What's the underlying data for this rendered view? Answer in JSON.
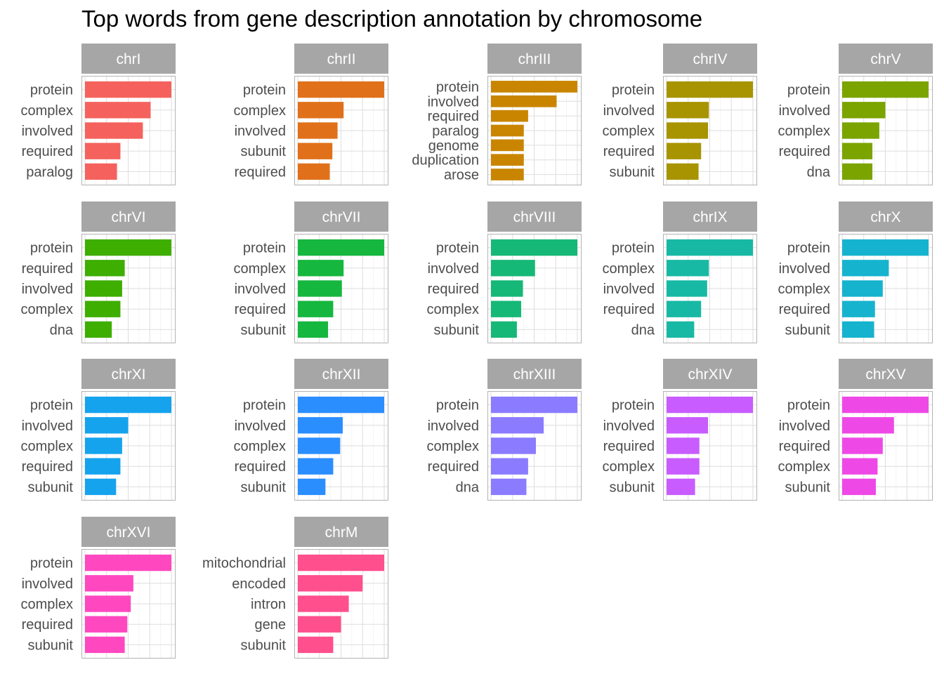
{
  "chart_data": {
    "type": "bar",
    "orientation": "horizontal",
    "title": "Top words from gene description annotation by chromosome",
    "xlabel": "",
    "ylabel": "",
    "x_axis_labels_shown": false,
    "value_units": "relative to largest bar in facet (scales free)",
    "grid": true,
    "facets": [
      {
        "name": "chrI",
        "color": "#F5625D",
        "categories": [
          "protein",
          "complex",
          "involved",
          "required",
          "paralog"
        ],
        "values": [
          1.0,
          0.76,
          0.67,
          0.41,
          0.37
        ]
      },
      {
        "name": "chrII",
        "color": "#E0711A",
        "categories": [
          "protein",
          "complex",
          "involved",
          "subunit",
          "required"
        ],
        "values": [
          1.0,
          0.53,
          0.46,
          0.4,
          0.37
        ]
      },
      {
        "name": "chrIII",
        "color": "#C98500",
        "categories": [
          "protein",
          "involved",
          "required",
          "paralog",
          "genome",
          "duplication",
          "arose"
        ],
        "values": [
          1.0,
          0.76,
          0.43,
          0.38,
          0.38,
          0.38,
          0.38
        ]
      },
      {
        "name": "chrIV",
        "color": "#A89400",
        "categories": [
          "protein",
          "involved",
          "complex",
          "required",
          "subunit"
        ],
        "values": [
          1.0,
          0.49,
          0.48,
          0.4,
          0.37
        ]
      },
      {
        "name": "chrV",
        "color": "#7BA400",
        "categories": [
          "protein",
          "involved",
          "complex",
          "required",
          "dna"
        ],
        "values": [
          1.0,
          0.5,
          0.43,
          0.35,
          0.35
        ]
      },
      {
        "name": "chrVI",
        "color": "#3EAE00",
        "categories": [
          "protein",
          "required",
          "involved",
          "complex",
          "dna"
        ],
        "values": [
          1.0,
          0.46,
          0.43,
          0.41,
          0.31
        ]
      },
      {
        "name": "chrVII",
        "color": "#16B73E",
        "categories": [
          "protein",
          "complex",
          "involved",
          "required",
          "subunit"
        ],
        "values": [
          1.0,
          0.53,
          0.51,
          0.41,
          0.35
        ]
      },
      {
        "name": "chrVIII",
        "color": "#16B877",
        "categories": [
          "protein",
          "involved",
          "required",
          "complex",
          "subunit"
        ],
        "values": [
          1.0,
          0.51,
          0.37,
          0.35,
          0.3
        ]
      },
      {
        "name": "chrIX",
        "color": "#18B9A4",
        "categories": [
          "protein",
          "complex",
          "involved",
          "required",
          "dna"
        ],
        "values": [
          1.0,
          0.49,
          0.47,
          0.4,
          0.32
        ]
      },
      {
        "name": "chrX",
        "color": "#16B3CE",
        "categories": [
          "protein",
          "involved",
          "complex",
          "required",
          "subunit"
        ],
        "values": [
          1.0,
          0.54,
          0.47,
          0.38,
          0.37
        ]
      },
      {
        "name": "chrXI",
        "color": "#15A3EE",
        "categories": [
          "protein",
          "involved",
          "complex",
          "required",
          "subunit"
        ],
        "values": [
          1.0,
          0.5,
          0.43,
          0.41,
          0.36
        ]
      },
      {
        "name": "chrXII",
        "color": "#2A8EFF",
        "categories": [
          "protein",
          "involved",
          "complex",
          "required",
          "subunit"
        ],
        "values": [
          1.0,
          0.52,
          0.49,
          0.41,
          0.32
        ]
      },
      {
        "name": "chrXIII",
        "color": "#8B7BFF",
        "categories": [
          "protein",
          "involved",
          "complex",
          "required",
          "dna"
        ],
        "values": [
          1.0,
          0.61,
          0.52,
          0.43,
          0.41
        ]
      },
      {
        "name": "chrXIV",
        "color": "#C85CFF",
        "categories": [
          "protein",
          "involved",
          "required",
          "complex",
          "subunit"
        ],
        "values": [
          1.0,
          0.48,
          0.38,
          0.38,
          0.33
        ]
      },
      {
        "name": "chrXV",
        "color": "#EE49E6",
        "categories": [
          "protein",
          "involved",
          "required",
          "complex",
          "subunit"
        ],
        "values": [
          1.0,
          0.6,
          0.47,
          0.41,
          0.39
        ]
      },
      {
        "name": "chrXVI",
        "color": "#FF48C0",
        "categories": [
          "protein",
          "involved",
          "complex",
          "required",
          "subunit"
        ],
        "values": [
          1.0,
          0.56,
          0.53,
          0.49,
          0.46
        ]
      },
      {
        "name": "chrM",
        "color": "#FF4F8C",
        "categories": [
          "mitochondrial",
          "encoded",
          "intron",
          "gene",
          "subunit"
        ],
        "values": [
          1.0,
          0.75,
          0.59,
          0.5,
          0.41
        ]
      }
    ]
  }
}
